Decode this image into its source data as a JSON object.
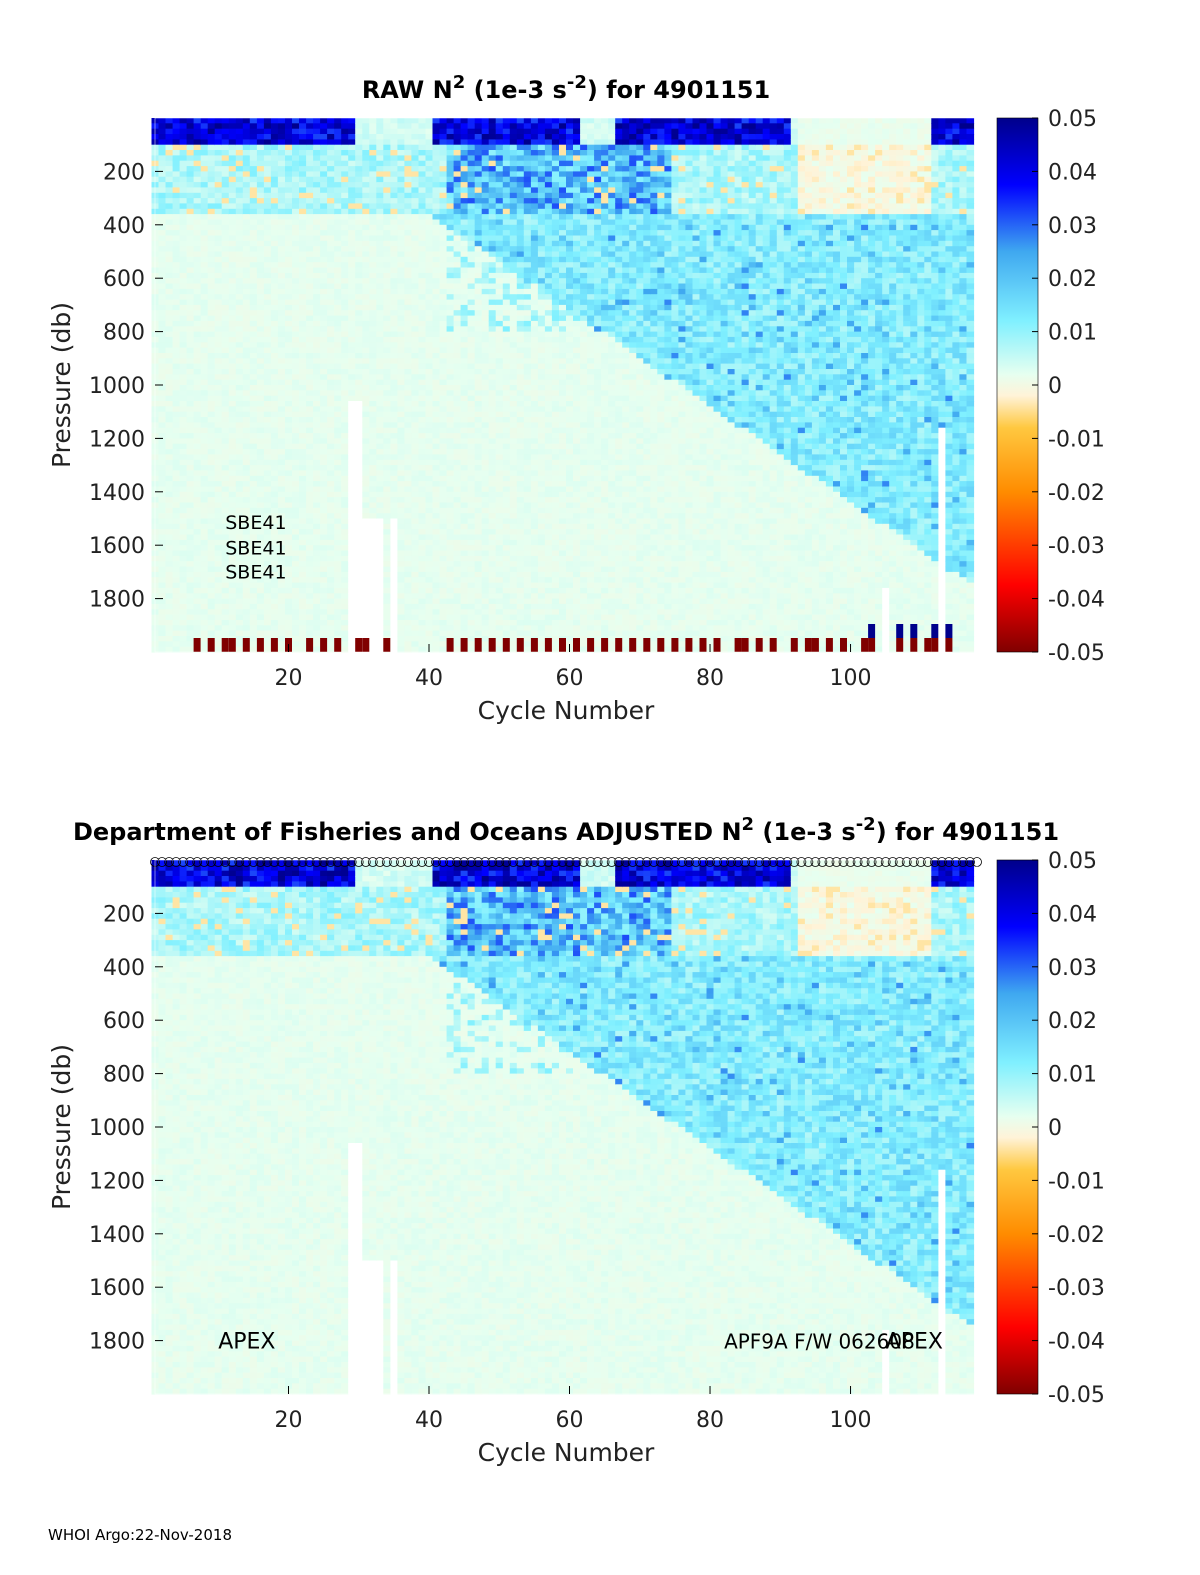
{
  "chart_data": [
    {
      "type": "heatmap",
      "title_prefix": "RAW N",
      "title_sup": "2",
      "title_unit_open": " (1e-3 s",
      "title_unit_sup": "-2",
      "title_suffix": ") for 4901151",
      "xlabel": "Cycle Number",
      "ylabel": "Pressure (db)",
      "xlim": [
        1,
        118
      ],
      "ylim": [
        2000,
        0
      ],
      "xticks": [
        20,
        40,
        60,
        80,
        100
      ],
      "yticks": [
        200,
        400,
        600,
        800,
        1000,
        1200,
        1400,
        1600,
        1800
      ],
      "clim": [
        -0.05,
        0.05
      ],
      "colorbar_ticks": [
        "0.05",
        "0.04",
        "0.03",
        "0.02",
        "0.01",
        "0",
        "-0.01",
        "-0.02",
        "-0.03",
        "-0.04",
        "-0.05"
      ],
      "annotations": [
        "SBE41",
        "SBE41",
        "SBE41"
      ],
      "annotation_pos": [
        [
          11,
          1510
        ],
        [
          11,
          1605
        ],
        [
          11,
          1695
        ]
      ],
      "has_top_markers": false,
      "bottom_red_cycles": [
        7,
        9,
        11,
        12,
        14,
        16,
        18,
        20,
        23,
        25,
        27,
        30,
        31,
        34,
        43,
        45,
        47,
        49,
        51,
        53,
        55,
        57,
        59,
        61,
        63,
        65,
        67,
        69,
        71,
        73,
        75,
        77,
        79,
        81,
        84,
        85,
        87,
        89,
        92,
        94,
        95,
        97,
        99,
        102,
        103,
        107,
        109,
        111,
        112,
        114
      ],
      "bottom_blue_cycles": [
        103,
        107,
        109,
        112,
        114
      ],
      "gap_cycles": [
        29,
        30,
        31,
        32,
        33,
        35,
        105,
        113
      ]
    },
    {
      "type": "heatmap",
      "title_prefix": "Department of Fisheries and Oceans  ADJUSTED N",
      "title_sup": "2",
      "title_unit_open": " (1e-3 s",
      "title_unit_sup": "-2",
      "title_suffix": ") for 4901151",
      "xlabel": "Cycle Number",
      "ylabel": "Pressure (db)",
      "xlim": [
        1,
        118
      ],
      "ylim": [
        2000,
        0
      ],
      "xticks": [
        20,
        40,
        60,
        80,
        100
      ],
      "yticks": [
        200,
        400,
        600,
        800,
        1000,
        1200,
        1400,
        1600,
        1800
      ],
      "clim": [
        -0.05,
        0.05
      ],
      "colorbar_ticks": [
        "0.05",
        "0.04",
        "0.03",
        "0.02",
        "0.01",
        "0",
        "-0.01",
        "-0.02",
        "-0.03",
        "-0.04",
        "-0.05"
      ],
      "annotations": [
        "APEX",
        "APF9A F/W 062608",
        "APEX"
      ],
      "annotation_pos": [
        [
          10,
          1800
        ],
        [
          82,
          1800
        ],
        [
          105,
          1800
        ]
      ],
      "has_top_markers": true,
      "bottom_red_cycles": [],
      "bottom_blue_cycles": [],
      "gap_cycles": [
        29,
        30,
        31,
        32,
        33,
        35,
        105,
        113
      ]
    }
  ],
  "footer": "WHOI Argo:22-Nov-2018"
}
